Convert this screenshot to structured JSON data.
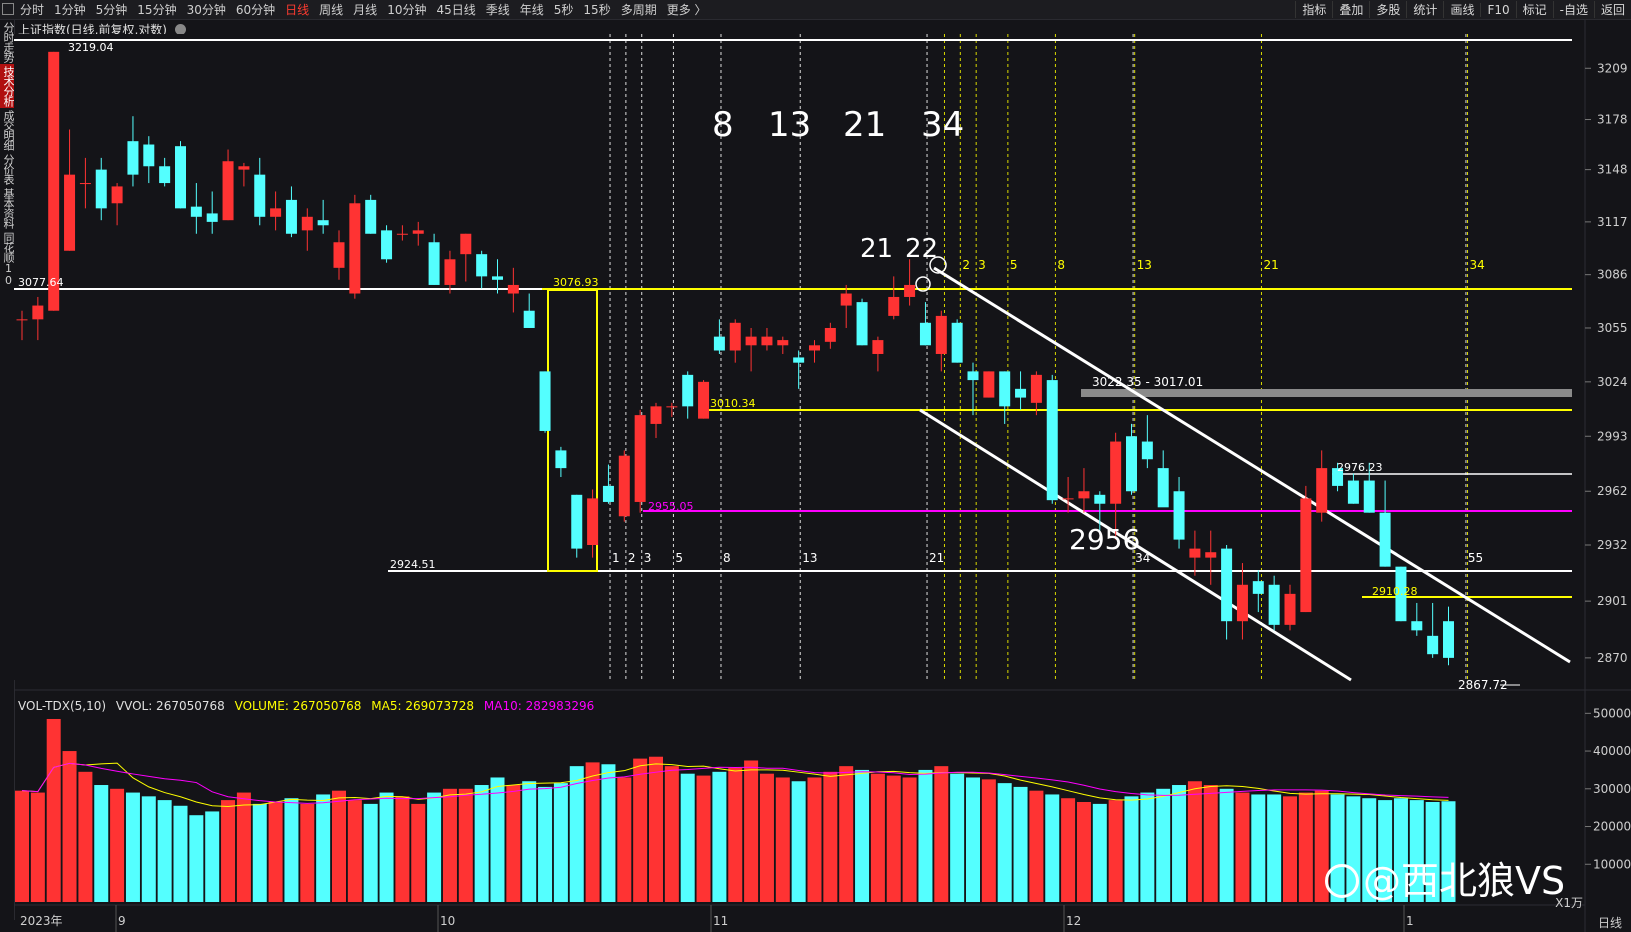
{
  "toolbar": {
    "periods": [
      "分时",
      "1分钟",
      "5分钟",
      "15分钟",
      "30分钟",
      "60分钟",
      "日线",
      "周线",
      "月线",
      "10分钟",
      "45日线",
      "季线",
      "年线",
      "5秒",
      "15秒",
      "多周期",
      "更多 〉"
    ],
    "active_period": "日线",
    "tools": [
      "指标",
      "叠加",
      "多股",
      "统计",
      "画线",
      "F10",
      "标记",
      "-自选",
      "返回"
    ]
  },
  "sidebar": {
    "tabs": [
      "分时走势",
      "技术分析",
      "成交明细",
      "分价表",
      "基本资料",
      "同花顺10"
    ],
    "active": "技术分析"
  },
  "chart": {
    "title": "上证指数(日线,前复权,对数)",
    "price_axis": [
      "3209",
      "3178",
      "3148",
      "3117",
      "3086",
      "3055",
      "3024",
      "2993",
      "2962",
      "2932",
      "2901",
      "2870"
    ],
    "volume_axis": [
      "50000",
      "40000",
      "30000",
      "20000",
      "10000"
    ],
    "volume_unit": "X1万",
    "date_labels": [
      "2023年",
      "9",
      "10",
      "11",
      "12",
      "1"
    ],
    "period_label": "日线",
    "annotations": {
      "high_label": "3219.04",
      "left_level": "3077.64",
      "level_3076": "3076.93",
      "level_3010": "3010.34",
      "level_2955": "2955.05",
      "level_2924": "2924.51",
      "level_2976": "2976.23",
      "level_2910": "2910.28",
      "gray_zone": "3022.35 - 3017.01",
      "low_label": "2867.72",
      "big_2956": "2956",
      "fib_big": [
        "8",
        "13",
        "21",
        "34"
      ],
      "fib_mid": [
        "21",
        "22"
      ],
      "fib_yellow": [
        "2",
        "3",
        "5",
        "8",
        "13",
        "21",
        "34"
      ],
      "fib_white": [
        "1",
        "2",
        "3",
        "5",
        "8",
        "13",
        "21",
        "34",
        "55"
      ]
    },
    "colors": {
      "up": "#ff3333",
      "down": "#54ffff",
      "ma5": "#ffff00",
      "ma10": "#ff00ff",
      "background": "#141418"
    }
  },
  "volume": {
    "indicator": "VOL-TDX(5,10)",
    "vvol": "VVOL: 267050768",
    "volume": "VOLUME: 267050768",
    "ma5": "MA5: 269073728",
    "ma10": "MA10: 282983296"
  },
  "watermark": "@西北狼VS",
  "chart_data": {
    "type": "candlestick",
    "ohlc": [
      [
        3060,
        3065,
        3048,
        3060
      ],
      [
        3060,
        3073,
        3048,
        3068
      ],
      [
        3065,
        3219,
        3065,
        3219
      ],
      [
        3100,
        3172,
        3100,
        3145
      ],
      [
        3140,
        3155,
        3125,
        3140
      ],
      [
        3148,
        3155,
        3118,
        3125
      ],
      [
        3128,
        3140,
        3115,
        3138
      ],
      [
        3165,
        3180,
        3138,
        3145
      ],
      [
        3163,
        3168,
        3140,
        3150
      ],
      [
        3150,
        3155,
        3138,
        3140
      ],
      [
        3162,
        3165,
        3125,
        3125
      ],
      [
        3126,
        3140,
        3110,
        3120
      ],
      [
        3122,
        3135,
        3110,
        3117
      ],
      [
        3118,
        3160,
        3118,
        3153
      ],
      [
        3148,
        3152,
        3138,
        3150
      ],
      [
        3145,
        3155,
        3115,
        3120
      ],
      [
        3120,
        3135,
        3112,
        3125
      ],
      [
        3130,
        3138,
        3108,
        3110
      ],
      [
        3112,
        3125,
        3100,
        3120
      ],
      [
        3118,
        3130,
        3110,
        3115
      ],
      [
        3090,
        3112,
        3083,
        3105
      ],
      [
        3075,
        3133,
        3072,
        3128
      ],
      [
        3130,
        3133,
        3110,
        3110
      ],
      [
        3112,
        3115,
        3093,
        3095
      ],
      [
        3110,
        3115,
        3106,
        3110
      ],
      [
        3110,
        3117,
        3103,
        3112
      ],
      [
        3105,
        3110,
        3080,
        3080
      ],
      [
        3080,
        3100,
        3075,
        3095
      ],
      [
        3098,
        3110,
        3082,
        3110
      ],
      [
        3098,
        3100,
        3078,
        3085
      ],
      [
        3085,
        3095,
        3075,
        3083
      ],
      [
        3075,
        3090,
        3064,
        3080
      ],
      [
        3065,
        3075,
        3055,
        3055
      ],
      [
        3030,
        3030,
        2995,
        2996
      ],
      [
        2985,
        2987,
        2970,
        2975
      ],
      [
        2960,
        2960,
        2925,
        2930
      ],
      [
        2932,
        2963,
        2925,
        2958
      ],
      [
        2965,
        2977,
        2955,
        2956
      ],
      [
        2948,
        2985,
        2945,
        2982
      ],
      [
        2956,
        3008,
        2950,
        3005
      ],
      [
        3000,
        3012,
        2992,
        3010
      ],
      [
        3010,
        3012,
        3004,
        3010
      ],
      [
        3028,
        3030,
        3003,
        3010
      ],
      [
        3003,
        3025,
        3003,
        3024
      ],
      [
        3050,
        3060,
        3040,
        3042
      ],
      [
        3042,
        3060,
        3035,
        3058
      ],
      [
        3045,
        3055,
        3030,
        3050
      ],
      [
        3045,
        3055,
        3042,
        3050
      ],
      [
        3045,
        3050,
        3040,
        3048
      ],
      [
        3038,
        3042,
        3020,
        3035
      ],
      [
        3042,
        3048,
        3035,
        3045
      ],
      [
        3047,
        3058,
        3043,
        3055
      ],
      [
        3068,
        3080,
        3055,
        3075
      ],
      [
        3070,
        3072,
        3045,
        3045
      ],
      [
        3040,
        3050,
        3030,
        3048
      ],
      [
        3062,
        3085,
        3060,
        3073
      ],
      [
        3073,
        3095,
        3068,
        3080
      ],
      [
        3058,
        3070,
        3045,
        3045
      ],
      [
        3040,
        3065,
        3030,
        3062
      ],
      [
        3058,
        3060,
        3035,
        3035
      ],
      [
        3030,
        3035,
        3005,
        3025
      ],
      [
        3015,
        3030,
        3015,
        3030
      ],
      [
        3030,
        3030,
        3000,
        3010
      ],
      [
        3020,
        3030,
        3008,
        3015
      ],
      [
        3012,
        3030,
        3005,
        3028
      ],
      [
        3025,
        3028,
        2955,
        2957
      ],
      [
        2958,
        2970,
        2950,
        2958
      ],
      [
        2958,
        2975,
        2950,
        2962
      ],
      [
        2960,
        2962,
        2940,
        2955
      ],
      [
        2955,
        2995,
        2935,
        2990
      ],
      [
        2993,
        3000,
        2960,
        2962
      ],
      [
        2990,
        3005,
        2975,
        2980
      ],
      [
        2975,
        2985,
        2955,
        2953
      ],
      [
        2962,
        2970,
        2930,
        2935
      ],
      [
        2925,
        2940,
        2915,
        2930
      ],
      [
        2925,
        2940,
        2910,
        2928
      ],
      [
        2930,
        2932,
        2880,
        2890
      ],
      [
        2890,
        2922,
        2880,
        2910
      ],
      [
        2912,
        2918,
        2895,
        2905
      ],
      [
        2910,
        2915,
        2885,
        2888
      ],
      [
        2888,
        2910,
        2885,
        2905
      ],
      [
        2895,
        2965,
        2895,
        2958
      ],
      [
        2950,
        2985,
        2945,
        2975
      ],
      [
        2975,
        2978,
        2962,
        2965
      ],
      [
        2968,
        2972,
        2955,
        2955
      ],
      [
        2968,
        2978,
        2950,
        2950
      ],
      [
        2950,
        2968,
        2920,
        2920
      ],
      [
        2920,
        2920,
        2890,
        2890
      ],
      [
        2890,
        2900,
        2882,
        2885
      ],
      [
        2882,
        2900,
        2870,
        2872
      ],
      [
        2890,
        2898,
        2866,
        2870
      ]
    ],
    "volumes": [
      29500,
      29000,
      48500,
      40000,
      34500,
      31000,
      30000,
      29000,
      28000,
      27000,
      25500,
      23000,
      24000,
      27000,
      29000,
      26000,
      26500,
      27500,
      26000,
      28500,
      29500,
      27000,
      26000,
      29000,
      28000,
      26000,
      29000,
      30000,
      30000,
      31000,
      33000,
      31000,
      32000,
      30500,
      31500,
      36000,
      37000,
      36500,
      33000,
      38000,
      38500,
      36000,
      34000,
      33500,
      34500,
      35500,
      37500,
      34000,
      33000,
      32000,
      33000,
      34500,
      36000,
      35000,
      34000,
      33500,
      33000,
      35000,
      36000,
      34000,
      33000,
      32500,
      31500,
      30500,
      29500,
      28500,
      27500,
      26500,
      26000,
      27000,
      28000,
      29000,
      30000,
      31000,
      32000,
      31000,
      30000,
      29000,
      28500,
      28500,
      28000,
      29000,
      29500,
      28500,
      28000,
      27500,
      27000,
      27500,
      27000,
      26500,
      26700
    ]
  }
}
